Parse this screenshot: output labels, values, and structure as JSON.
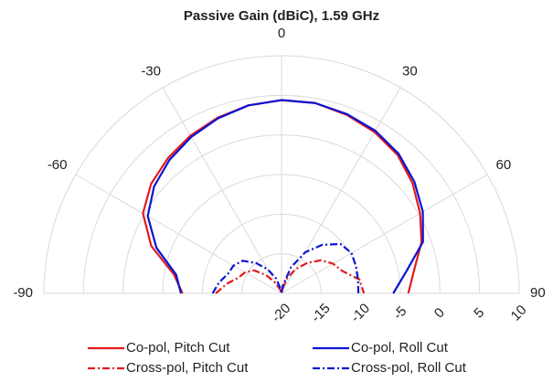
{
  "chart_data": {
    "type": "polar",
    "title": "Passive Gain (dBiC), 1.59 GHz",
    "x": [
      -90,
      -80,
      -70,
      -60,
      -50,
      -40,
      -30,
      -20,
      -10,
      0,
      10,
      20,
      30,
      40,
      50,
      60,
      70,
      80,
      90
    ],
    "thetalim": [
      -90,
      90
    ],
    "thetaticks": [
      -90,
      -60,
      -30,
      0,
      30,
      60,
      90
    ],
    "rlim": [
      -20,
      10
    ],
    "rticks": [
      -20,
      -15,
      -10,
      -5,
      0,
      5,
      10
    ],
    "grid": true,
    "series": [
      {
        "name": "Co-pol, Pitch Cut",
        "color": "#e31a1c",
        "linestyle": "solid",
        "values": [
          -7.5,
          -6.2,
          -2.5,
          0.2,
          1.5,
          2.3,
          3.0,
          3.6,
          4.1,
          4.4,
          4.4,
          4.0,
          3.5,
          2.8,
          1.6,
          0.2,
          -1.2,
          -3.0,
          -4.0
        ]
      },
      {
        "name": "Co-pol, Roll Cut",
        "color": "#0a14d2",
        "linestyle": "solid",
        "values": [
          -7.3,
          -6.5,
          -3.2,
          -0.5,
          1.0,
          2.0,
          2.8,
          3.5,
          4.1,
          4.4,
          4.4,
          4.1,
          3.7,
          3.0,
          1.9,
          0.6,
          -1.0,
          -4.0,
          -5.9
        ]
      },
      {
        "name": "Cross-pol, Pitch Cut",
        "color": "#e31a1c",
        "linestyle": "dashdot",
        "values": [
          -11.7,
          -13.0,
          -14.2,
          -14.7,
          -15.5,
          -17,
          -18.5,
          -19.5,
          -20,
          -20,
          -19.5,
          -18,
          -16.5,
          -15,
          -13.5,
          -12.5,
          -11.8,
          -10.0,
          -9.6
        ]
      },
      {
        "name": "Cross-pol, Roll Cut",
        "color": "#0a14d2",
        "linestyle": "dashdot",
        "values": [
          -11.3,
          -12.0,
          -12.8,
          -13.0,
          -13.6,
          -15,
          -16.5,
          -18,
          -19.5,
          -20,
          -19,
          -16.5,
          -14,
          -12,
          -10.3,
          -9.8,
          -10.0,
          -10.2,
          -10.3
        ]
      }
    ]
  }
}
